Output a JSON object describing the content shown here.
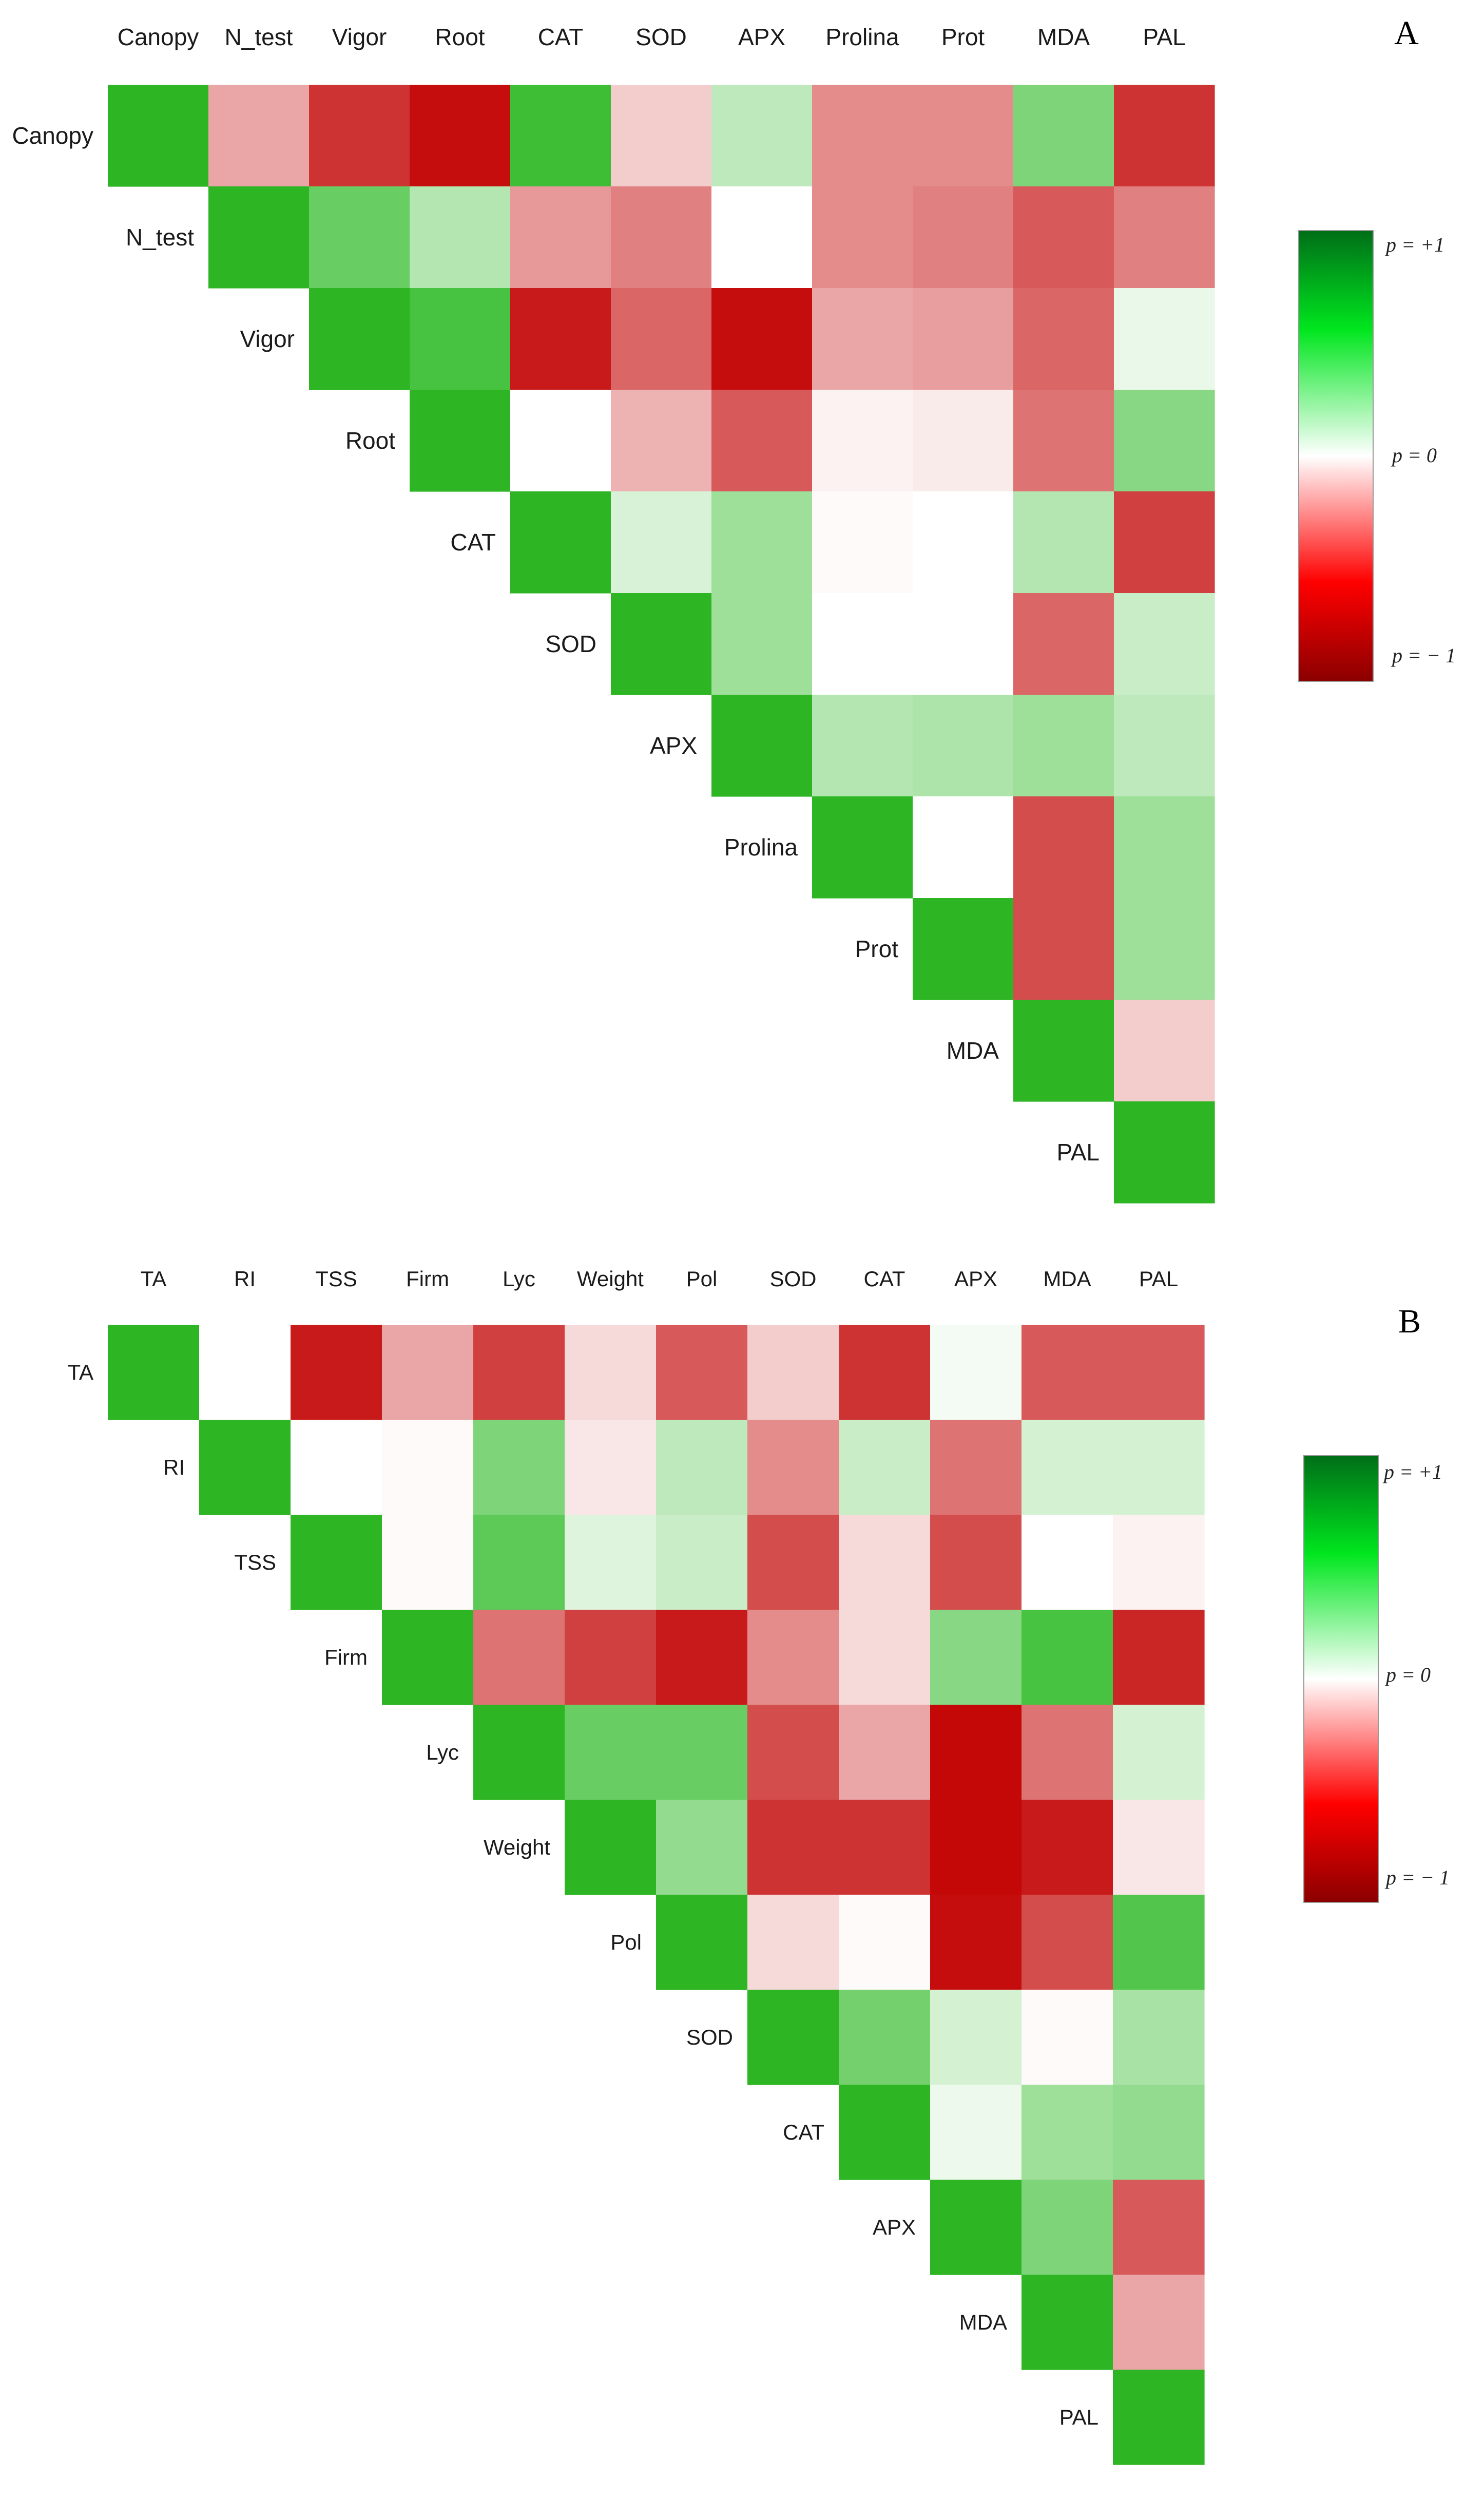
{
  "chart_data": [
    {
      "type": "heatmap",
      "panel_label": "A",
      "layout": "upper-triangle",
      "variables": [
        "Canopy",
        "N_test",
        "Vigor",
        "Root",
        "CAT",
        "SOD",
        "APX",
        "Prolina",
        "Prot",
        "MDA",
        "PAL"
      ],
      "matrix": [
        [
          1.0,
          -0.35,
          -0.8,
          -0.95,
          0.9,
          -0.2,
          0.3,
          -0.45,
          -0.45,
          0.6,
          -0.8
        ],
        [
          null,
          1.0,
          0.7,
          0.35,
          -0.4,
          -0.5,
          0.0,
          -0.45,
          -0.5,
          -0.65,
          -0.5
        ],
        [
          null,
          null,
          1.0,
          0.85,
          -0.9,
          -0.6,
          -0.95,
          -0.35,
          -0.38,
          -0.6,
          0.1
        ],
        [
          null,
          null,
          null,
          1.0,
          0.0,
          -0.3,
          -0.65,
          -0.05,
          -0.08,
          -0.55,
          0.55
        ],
        [
          null,
          null,
          null,
          null,
          1.0,
          0.18,
          0.45,
          -0.02,
          0.0,
          0.35,
          -0.75
        ],
        [
          null,
          null,
          null,
          null,
          null,
          1.0,
          0.45,
          0.0,
          0.0,
          -0.6,
          0.25
        ],
        [
          null,
          null,
          null,
          null,
          null,
          null,
          1.0,
          0.35,
          0.38,
          0.45,
          0.3
        ],
        [
          null,
          null,
          null,
          null,
          null,
          null,
          null,
          1.0,
          0.0,
          -0.7,
          0.45
        ],
        [
          null,
          null,
          null,
          null,
          null,
          null,
          null,
          null,
          1.0,
          -0.7,
          0.45
        ],
        [
          null,
          null,
          null,
          null,
          null,
          null,
          null,
          null,
          null,
          1.0,
          -0.2
        ],
        [
          null,
          null,
          null,
          null,
          null,
          null,
          null,
          null,
          null,
          null,
          1.0
        ]
      ],
      "legend": {
        "max_label": "p = +1",
        "mid_label": "p = 0",
        "min_label": "p = − 1",
        "range": [
          -1,
          1
        ]
      }
    },
    {
      "type": "heatmap",
      "panel_label": "B",
      "layout": "upper-triangle",
      "variables": [
        "TA",
        "RI",
        "TSS",
        "Firm",
        "Lyc",
        "Weight",
        "Pol",
        "SOD",
        "CAT",
        "APX",
        "MDA",
        "PAL"
      ],
      "matrix": [
        [
          1.0,
          0.0,
          -0.9,
          -0.35,
          -0.75,
          -0.15,
          -0.65,
          -0.2,
          -0.8,
          0.05,
          -0.65,
          -0.65
        ],
        [
          null,
          1.0,
          0.0,
          -0.02,
          0.6,
          -0.1,
          0.3,
          -0.45,
          0.25,
          -0.55,
          0.2,
          0.2
        ],
        [
          null,
          null,
          1.0,
          -0.02,
          0.75,
          0.15,
          0.25,
          -0.7,
          -0.15,
          -0.7,
          0.0,
          -0.05
        ],
        [
          null,
          null,
          null,
          1.0,
          -0.55,
          -0.75,
          -0.9,
          -0.45,
          -0.15,
          0.55,
          0.85,
          -0.85
        ],
        [
          null,
          null,
          null,
          null,
          1.0,
          0.7,
          0.7,
          -0.7,
          -0.35,
          -0.97,
          -0.55,
          0.2
        ],
        [
          null,
          null,
          null,
          null,
          null,
          1.0,
          0.5,
          -0.8,
          -0.8,
          -0.97,
          -0.9,
          -0.1
        ],
        [
          null,
          null,
          null,
          null,
          null,
          null,
          1.0,
          -0.15,
          -0.02,
          -0.95,
          -0.7,
          0.8
        ],
        [
          null,
          null,
          null,
          null,
          null,
          null,
          null,
          1.0,
          0.65,
          0.2,
          -0.02,
          0.4
        ],
        [
          null,
          null,
          null,
          null,
          null,
          null,
          null,
          null,
          1.0,
          0.08,
          0.45,
          0.5
        ],
        [
          null,
          null,
          null,
          null,
          null,
          null,
          null,
          null,
          null,
          1.0,
          0.6,
          -0.65
        ],
        [
          null,
          null,
          null,
          null,
          null,
          null,
          null,
          null,
          null,
          null,
          1.0,
          -0.35
        ],
        [
          null,
          null,
          null,
          null,
          null,
          null,
          null,
          null,
          null,
          null,
          null,
          1.0
        ]
      ],
      "legend": {
        "max_label": "p = +1",
        "mid_label": "p = 0",
        "min_label": "p = − 1",
        "range": [
          -1,
          1
        ]
      }
    }
  ],
  "colors": {
    "diagonal": "#2db523",
    "positive_max": "#27b71f",
    "negative_max": "#c20000",
    "zero": "#ffffff",
    "legend_top": "#006e18",
    "legend_pos": "#00e61e",
    "legend_neg": "#ff0000",
    "legend_bottom": "#8b0000"
  }
}
